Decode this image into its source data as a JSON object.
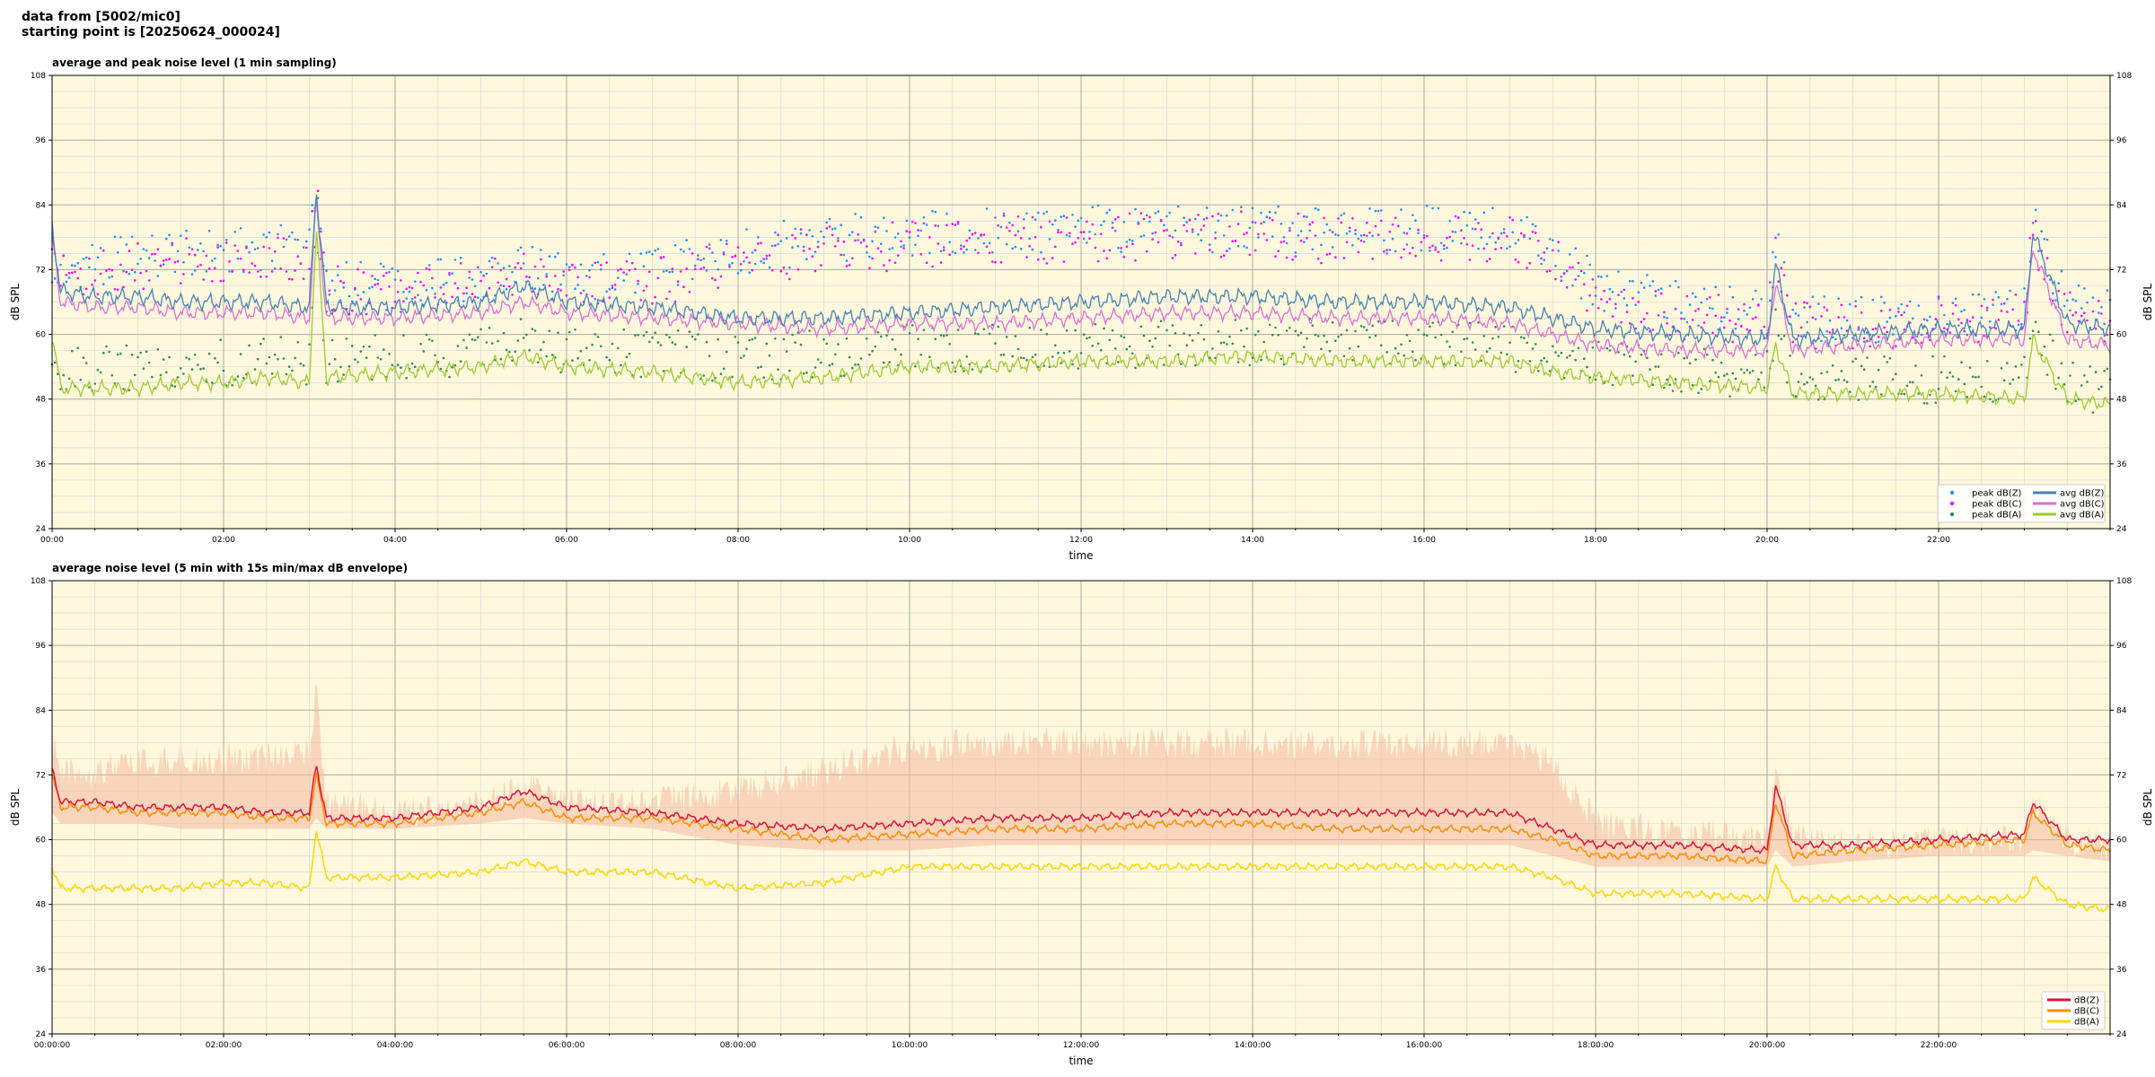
{
  "header": {
    "line1": "data from [5002/mic0]",
    "line2": "starting point is [20250624_000024]"
  },
  "colors": {
    "plot_bg": "#fff8dc",
    "grid_major": "#a9a9a9",
    "grid_minor": "#dcdcdc",
    "avg_z": "#4682b4",
    "avg_c": "#da70d6",
    "avg_a": "#9acd32",
    "peak_z": "#1e90ff",
    "peak_c": "#ff00ff",
    "peak_a": "#2e8b57",
    "env": "#f4b9a0",
    "db_z": "#dc143c",
    "db_c": "#ff8c00",
    "db_a": "#ffd700"
  },
  "chart_data": [
    {
      "type": "line",
      "title": "average and peak noise level (1 min sampling)",
      "xlabel": "time",
      "ylabel": "dB SPL",
      "ylim": [
        24,
        108
      ],
      "yticks": [
        "24",
        "36",
        "48",
        "60",
        "72",
        "84",
        "96",
        "108"
      ],
      "xlim": [
        0,
        24
      ],
      "xticks": [
        "00:00",
        "02:00",
        "04:00",
        "06:00",
        "08:00",
        "10:00",
        "12:00",
        "14:00",
        "16:00",
        "18:00",
        "20:00",
        "22:00"
      ],
      "grid": true,
      "legend_position": "bottom-right",
      "legend": [
        "peak dB(Z)",
        "peak dB(C)",
        "peak dB(A)",
        "avg dB(Z)",
        "avg dB(C)",
        "avg dB(A)"
      ],
      "x_hours": [
        0,
        0.1,
        0.5,
        1,
        1.5,
        2,
        2.5,
        3,
        3.08,
        3.2,
        4,
        5,
        5.5,
        6,
        7,
        8,
        9,
        10,
        11,
        12,
        13,
        14,
        15,
        16,
        17,
        17.5,
        18,
        19,
        20,
        20.1,
        20.3,
        21,
        22,
        23,
        23.1,
        23.5,
        24
      ],
      "series": [
        {
          "name": "avg dB(Z)",
          "kind": "line",
          "values": [
            80,
            68,
            67,
            67,
            66,
            66,
            66,
            65,
            87,
            65,
            65,
            66,
            69,
            66,
            65,
            63,
            63,
            64,
            65,
            66,
            67,
            67,
            66,
            66,
            65,
            63,
            61,
            60,
            59,
            73,
            59,
            60,
            61,
            61,
            79,
            62,
            61
          ]
        },
        {
          "name": "avg dB(C)",
          "kind": "line",
          "values": [
            78,
            66,
            65,
            65,
            64,
            64,
            64,
            63,
            85,
            63,
            63,
            64,
            66,
            64,
            63,
            62,
            61,
            62,
            62,
            63,
            64,
            64,
            63,
            63,
            62,
            60,
            58,
            57,
            57,
            70,
            57,
            58,
            59,
            59,
            76,
            59,
            58
          ]
        },
        {
          "name": "avg dB(A)",
          "kind": "line",
          "values": [
            60,
            50,
            50,
            50,
            51,
            51,
            52,
            51,
            80,
            52,
            53,
            54,
            56,
            54,
            53,
            51,
            52,
            54,
            54,
            55,
            55,
            56,
            55,
            55,
            55,
            53,
            52,
            51,
            50,
            58,
            49,
            49,
            49,
            48,
            59,
            48,
            47
          ]
        },
        {
          "name": "peak dB(Z)",
          "kind": "scatter",
          "values": [
            72,
            72,
            73,
            74,
            75,
            75,
            76,
            76,
            89,
            70,
            68,
            70,
            73,
            70,
            71,
            75,
            77,
            78,
            79,
            79,
            79,
            79,
            79,
            79,
            79,
            76,
            68,
            65,
            63,
            76,
            62,
            62,
            63,
            64,
            80,
            65,
            64
          ]
        },
        {
          "name": "peak dB(C)",
          "kind": "scatter",
          "values": [
            71,
            70,
            71,
            72,
            73,
            73,
            74,
            74,
            88,
            68,
            67,
            69,
            71,
            68,
            69,
            73,
            75,
            76,
            77,
            77,
            78,
            78,
            77,
            77,
            77,
            74,
            66,
            63,
            62,
            74,
            61,
            61,
            62,
            63,
            78,
            63,
            62
          ]
        },
        {
          "name": "peak dB(A)",
          "kind": "scatter",
          "values": [
            56,
            53,
            53,
            53,
            54,
            54,
            55,
            54,
            81,
            55,
            55,
            56,
            58,
            56,
            56,
            55,
            56,
            57,
            57,
            57,
            58,
            58,
            58,
            58,
            57,
            55,
            54,
            53,
            52,
            60,
            51,
            51,
            51,
            51,
            61,
            50,
            49
          ]
        }
      ]
    },
    {
      "type": "line",
      "title": "average noise level (5 min with 15s min/max dB envelope)",
      "xlabel": "time",
      "ylabel": "dB SPL",
      "ylim": [
        24,
        108
      ],
      "yticks": [
        "24",
        "36",
        "48",
        "60",
        "72",
        "84",
        "96",
        "108"
      ],
      "xlim": [
        0,
        24
      ],
      "xticks": [
        "00:00:00",
        "02:00:00",
        "04:00:00",
        "06:00:00",
        "08:00:00",
        "10:00:00",
        "12:00:00",
        "14:00:00",
        "16:00:00",
        "18:00:00",
        "20:00:00",
        "22:00:00"
      ],
      "grid": true,
      "legend_position": "bottom-right",
      "legend": [
        "dB(Z)",
        "dB(C)",
        "dB(A)"
      ],
      "x_hours": [
        0,
        0.1,
        0.5,
        1,
        1.5,
        2,
        2.5,
        3,
        3.08,
        3.2,
        4,
        5,
        5.5,
        6,
        7,
        8,
        9,
        10,
        11,
        12,
        13,
        14,
        15,
        16,
        17,
        17.5,
        18,
        19,
        20,
        20.1,
        20.3,
        21,
        22,
        23,
        23.1,
        23.5,
        24
      ],
      "series": [
        {
          "name": "dB(Z)",
          "kind": "line",
          "values": [
            73,
            67,
            67,
            66,
            66,
            66,
            65,
            65,
            74,
            64,
            64,
            66,
            69,
            66,
            65,
            63,
            62,
            63,
            64,
            64,
            65,
            65,
            65,
            65,
            65,
            62,
            59,
            59,
            58,
            70,
            59,
            59,
            60,
            61,
            67,
            60,
            60
          ]
        },
        {
          "name": "dB(C)",
          "kind": "line",
          "values": [
            72,
            66,
            66,
            65,
            65,
            65,
            64,
            64,
            72,
            63,
            63,
            65,
            67,
            64,
            64,
            62,
            60,
            61,
            62,
            62,
            63,
            63,
            62,
            62,
            62,
            60,
            57,
            57,
            56,
            67,
            57,
            58,
            59,
            60,
            65,
            59,
            58
          ]
        },
        {
          "name": "dB(A)",
          "kind": "line",
          "values": [
            55,
            51,
            51,
            51,
            51,
            52,
            52,
            51,
            62,
            53,
            53,
            54,
            56,
            54,
            54,
            51,
            52,
            55,
            55,
            55,
            55,
            55,
            55,
            55,
            55,
            53,
            50,
            50,
            49,
            55,
            49,
            49,
            49,
            49,
            53,
            48,
            47
          ]
        },
        {
          "name": "max envelope",
          "kind": "band_upper",
          "values": [
            82,
            75,
            76,
            77,
            78,
            78,
            78,
            79,
            90,
            70,
            68,
            69,
            73,
            70,
            70,
            72,
            76,
            80,
            81,
            81,
            81,
            81,
            81,
            81,
            81,
            77,
            66,
            64,
            63,
            76,
            63,
            62,
            63,
            63,
            70,
            63,
            62
          ]
        },
        {
          "name": "min envelope",
          "kind": "band_lower",
          "values": [
            65,
            63,
            63,
            63,
            62,
            62,
            62,
            62,
            64,
            62,
            62,
            63,
            64,
            63,
            62,
            59,
            58,
            58,
            59,
            59,
            59,
            59,
            59,
            59,
            59,
            57,
            55,
            55,
            55,
            58,
            55,
            56,
            57,
            57,
            58,
            57,
            56
          ]
        }
      ]
    }
  ]
}
